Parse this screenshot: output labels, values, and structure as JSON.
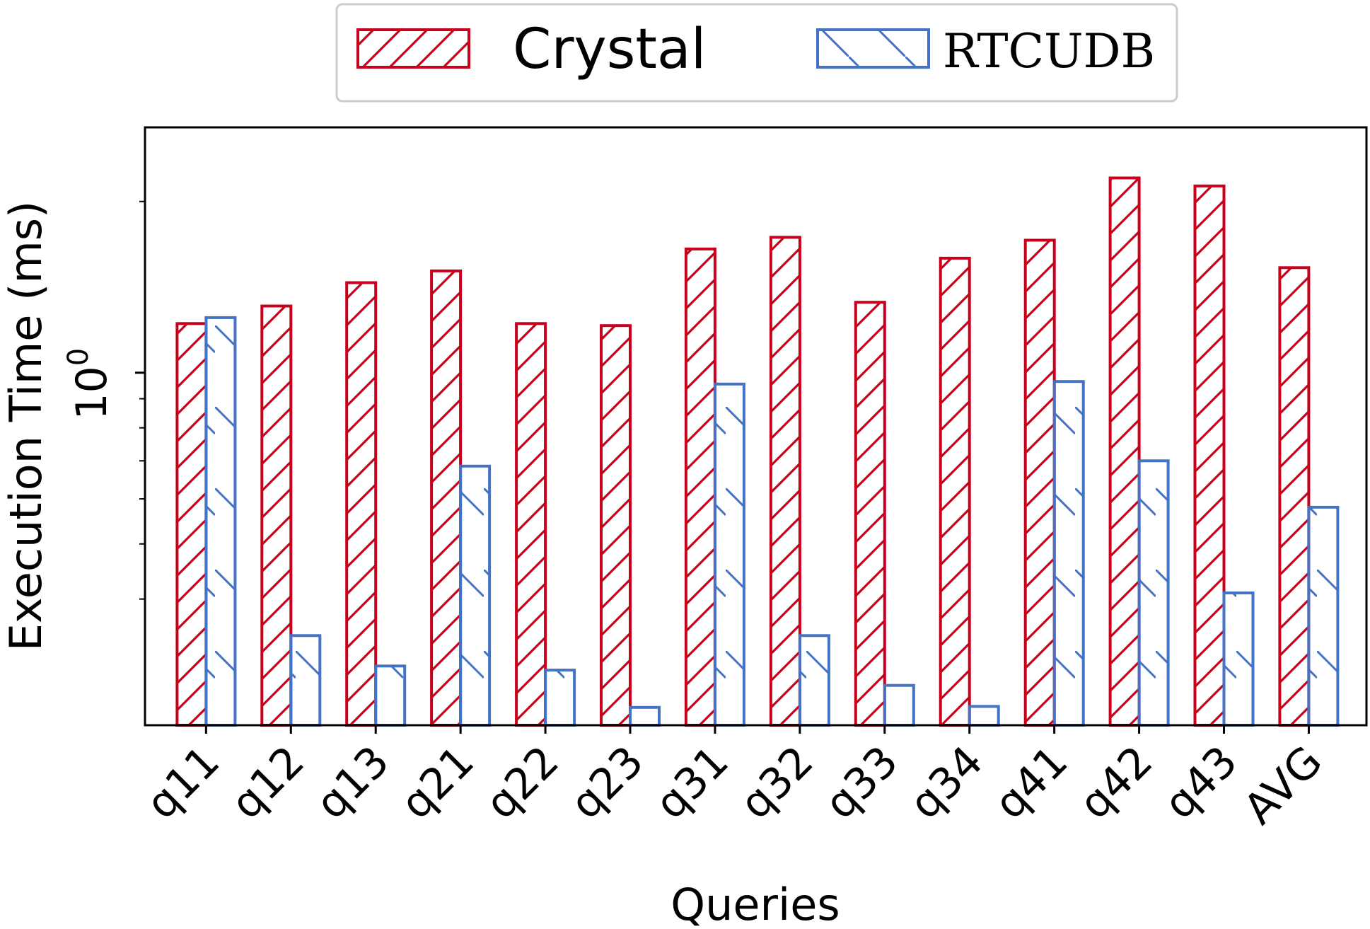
{
  "chart_data": {
    "type": "bar",
    "categories": [
      "q11",
      "q12",
      "q13",
      "q21",
      "q22",
      "q23",
      "q31",
      "q32",
      "q33",
      "q34",
      "q41",
      "q42",
      "q43",
      "AVG"
    ],
    "series": [
      {
        "name": "Crystal",
        "color": "#c8001c",
        "hatch": "diagonal-forward",
        "values": [
          1.22,
          1.31,
          1.44,
          1.51,
          1.22,
          1.21,
          1.65,
          1.73,
          1.33,
          1.59,
          1.71,
          2.2,
          2.13,
          1.53
        ]
      },
      {
        "name": "RTCUDB",
        "color": "#4472c4",
        "hatch": "diagonal-back",
        "values": [
          1.25,
          0.345,
          0.305,
          0.685,
          0.3,
          0.258,
          0.955,
          0.345,
          0.282,
          0.259,
          0.965,
          0.7,
          0.41,
          0.58
        ]
      }
    ],
    "xlabel": "Queries",
    "ylabel": "Execution Time (ms)",
    "yscale": "log",
    "ylim": [
      0.24,
      2.7
    ],
    "yticks": [
      {
        "value": 1,
        "label": "10",
        "exponent": "0"
      }
    ],
    "minor_yticks": [
      0.4,
      0.5,
      0.6,
      0.7,
      0.8,
      0.9,
      2
    ],
    "legend": {
      "placement": "top-center, outside",
      "ncol": 2
    },
    "grid": false
  }
}
